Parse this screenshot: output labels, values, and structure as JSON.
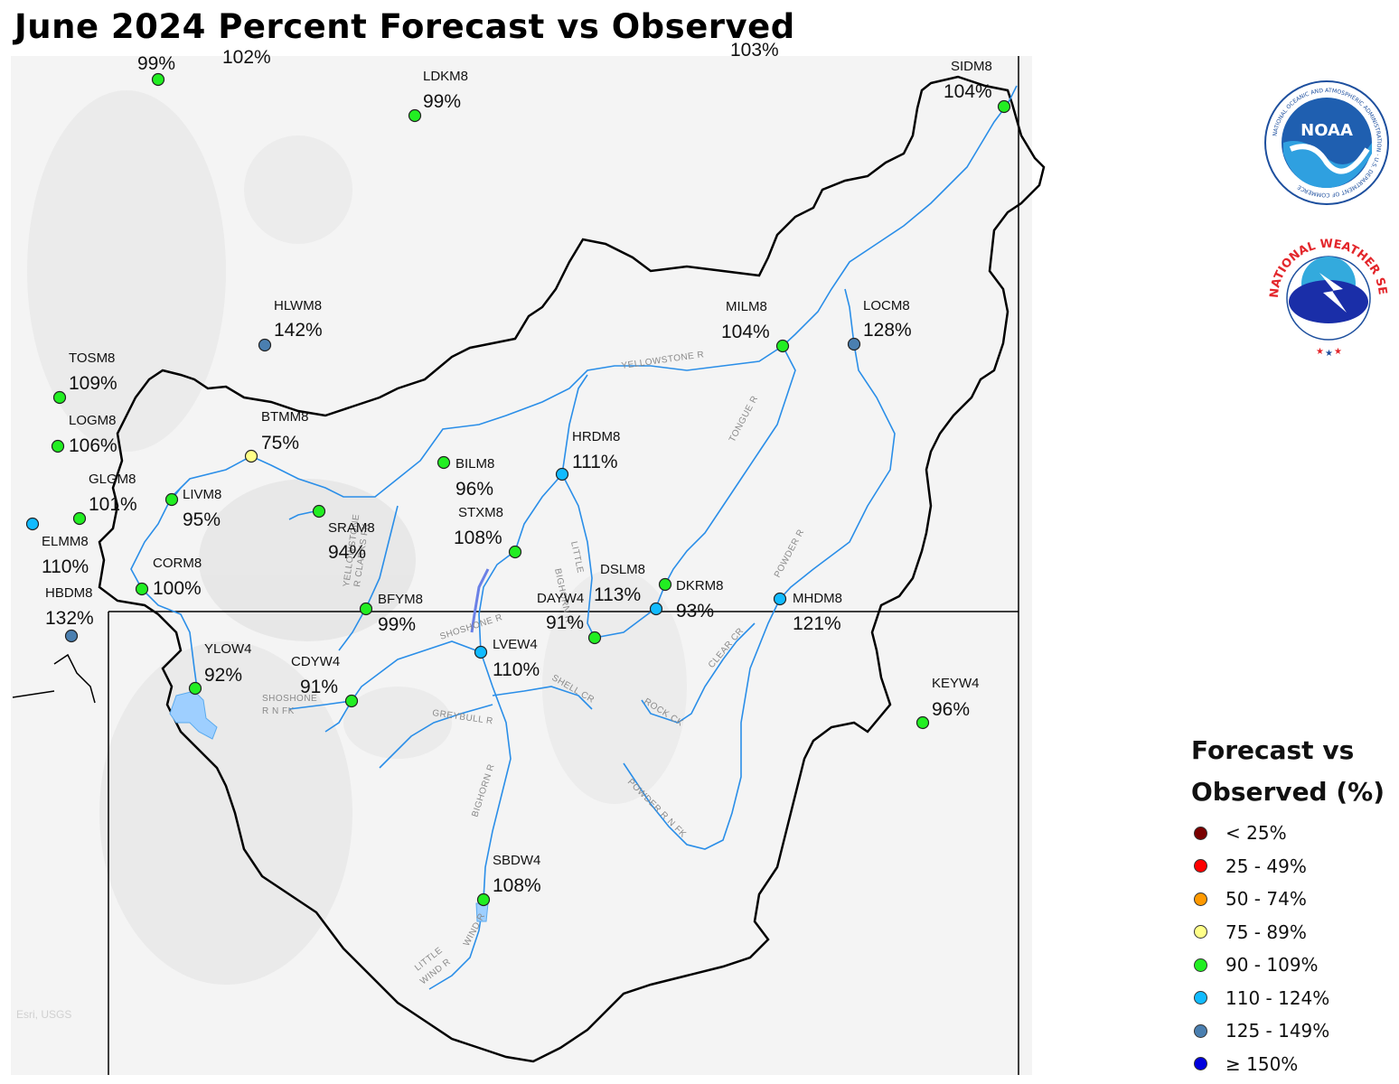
{
  "title": "June 2024 Percent Forecast vs Observed",
  "attribution": "Esri, USGS",
  "logos": {
    "noaa_text": "NOAA",
    "noaa_ring": "NATIONAL OCEANIC AND ATMOSPHERIC ADMINISTRATION · U.S. DEPARTMENT OF COMMERCE",
    "nws_ring": "NATIONAL WEATHER SERVICE"
  },
  "legend": {
    "title": [
      "Forecast vs",
      "Observed (%)"
    ],
    "items": [
      {
        "label": "< 25%",
        "color": "#7a0000"
      },
      {
        "label": "25 - 49%",
        "color": "#ff0000"
      },
      {
        "label": "50 - 74%",
        "color": "#ff9900"
      },
      {
        "label": "75 - 89%",
        "color": "#ffff88"
      },
      {
        "label": "90 - 109%",
        "color": "#22ee22"
      },
      {
        "label": "110 - 124%",
        "color": "#11bbff"
      },
      {
        "label": "125 - 149%",
        "color": "#4a7fb0"
      },
      {
        "label": "≥ 150%",
        "color": "#0000dd"
      }
    ]
  },
  "stations": [
    {
      "id": "",
      "pct": "99%",
      "color": "#22ee22"
    },
    {
      "id": "",
      "pct": "102%",
      "color": ""
    },
    {
      "id": "",
      "pct": "103%",
      "color": ""
    },
    {
      "id": "LDKM8",
      "pct": "99%",
      "color": "#22ee22"
    },
    {
      "id": "SIDM8",
      "pct": "104%",
      "color": "#22ee22"
    },
    {
      "id": "HLWM8",
      "pct": "142%",
      "color": "#4a7fb0"
    },
    {
      "id": "MILM8",
      "pct": "104%",
      "color": "#22ee22"
    },
    {
      "id": "LOCM8",
      "pct": "128%",
      "color": "#4a7fb0"
    },
    {
      "id": "TOSM8",
      "pct": "109%",
      "color": "#22ee22"
    },
    {
      "id": "LOGM8",
      "pct": "106%",
      "color": "#22ee22"
    },
    {
      "id": "BTMM8",
      "pct": "75%",
      "color": "#ffff88"
    },
    {
      "id": "BILM8",
      "pct": "96%",
      "color": "#22ee22"
    },
    {
      "id": "HRDM8",
      "pct": "111%",
      "color": "#11bbff"
    },
    {
      "id": "GLGM8",
      "pct": "101%",
      "color": "#22ee22"
    },
    {
      "id": "LIVM8",
      "pct": "95%",
      "color": "#22ee22"
    },
    {
      "id": "ELMM8",
      "pct": "110%",
      "color": "#11bbff"
    },
    {
      "id": "SRAM8",
      "pct": "94%",
      "color": "#22ee22"
    },
    {
      "id": "STXM8",
      "pct": "108%",
      "color": "#22ee22"
    },
    {
      "id": "CORM8",
      "pct": "100%",
      "color": "#22ee22"
    },
    {
      "id": "HBDM8",
      "pct": "132%",
      "color": "#4a7fb0"
    },
    {
      "id": "BFYM8",
      "pct": "99%",
      "color": "#22ee22"
    },
    {
      "id": "DSLM8",
      "pct": "113%",
      "color": "#11bbff"
    },
    {
      "id": "DKRM8",
      "pct": "93%",
      "color": "#22ee22"
    },
    {
      "id": "DAYW4",
      "pct": "91%",
      "color": "#22ee22"
    },
    {
      "id": "MHDM8",
      "pct": "121%",
      "color": "#11bbff"
    },
    {
      "id": "LVEW4",
      "pct": "110%",
      "color": "#11bbff"
    },
    {
      "id": "YLOW4",
      "pct": "92%",
      "color": "#22ee22"
    },
    {
      "id": "CDYW4",
      "pct": "91%",
      "color": "#22ee22"
    },
    {
      "id": "KEYW4",
      "pct": "96%",
      "color": "#22ee22"
    },
    {
      "id": "SBDW4",
      "pct": "108%",
      "color": "#22ee22"
    }
  ],
  "river_labels": [
    "YELLOWSTONE R",
    "TONGUE R",
    "POWDER R",
    "BIGHORN R",
    "LITTLE",
    "YELLOWSTONE",
    "R CLARKS FK",
    "SHOSHONE R",
    "SHELL CR",
    "GREYBULL R",
    "ROCK CK",
    "CLEAR CR",
    "POWDER R N FK",
    "BIGHORN R",
    "SHOSHONE",
    "R N FK",
    "WIND R",
    "LITTLE",
    "WIND R"
  ]
}
